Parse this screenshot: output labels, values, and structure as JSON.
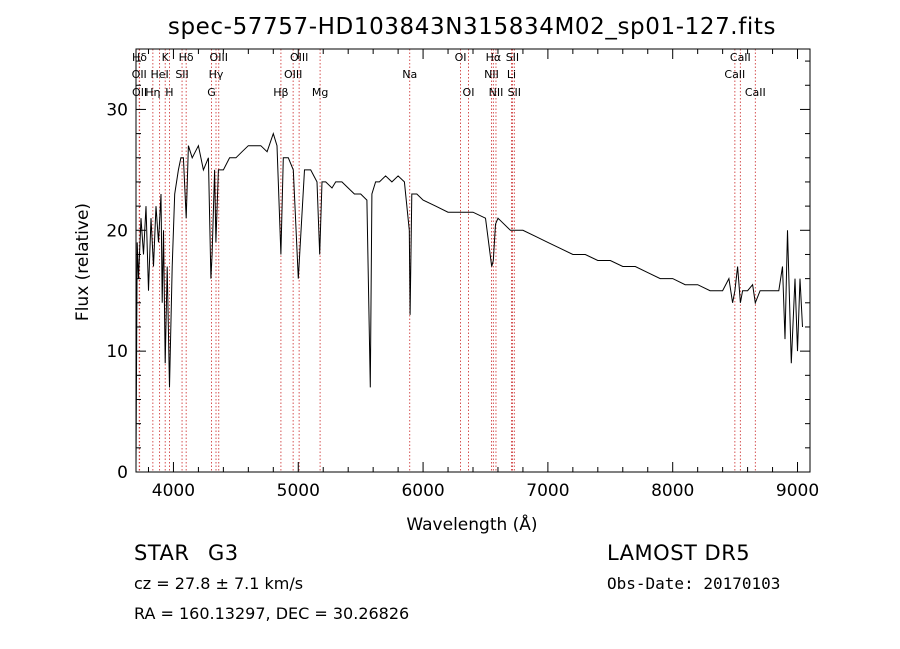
{
  "chart_data": {
    "type": "line",
    "title": "spec-57757-HD103843N315834M02_sp01-127.fits",
    "xlabel": "Wavelength (Å)",
    "ylabel": "Flux (relative)",
    "xlim": [
      3700,
      9100
    ],
    "ylim": [
      0,
      35
    ],
    "x_ticks": [
      4000,
      5000,
      6000,
      7000,
      8000,
      9000
    ],
    "y_ticks": [
      0,
      10,
      20,
      30
    ],
    "grid": false,
    "series": [
      {
        "x": [
          3700,
          3710,
          3720,
          3740,
          3760,
          3780,
          3800,
          3820,
          3840,
          3860,
          3880,
          3900,
          3910,
          3920,
          3934,
          3950,
          3968,
          3990,
          4010,
          4040,
          4060,
          4080,
          4102,
          4120,
          4150,
          4200,
          4240,
          4280,
          4300,
          4310,
          4330,
          4340,
          4360,
          4400,
          4450,
          4500,
          4550,
          4600,
          4650,
          4700,
          4750,
          4800,
          4830,
          4861,
          4880,
          4920,
          4960,
          5000,
          5050,
          5100,
          5150,
          5172,
          5190,
          5220,
          5270,
          5300,
          5350,
          5400,
          5450,
          5500,
          5550,
          5577,
          5590,
          5620,
          5650,
          5700,
          5750,
          5800,
          5850,
          5890,
          5896,
          5910,
          5950,
          6000,
          6100,
          6200,
          6300,
          6400,
          6500,
          6550,
          6563,
          6580,
          6600,
          6700,
          6800,
          6900,
          7000,
          7100,
          7200,
          7300,
          7400,
          7500,
          7600,
          7700,
          7800,
          7900,
          8000,
          8100,
          8200,
          8300,
          8400,
          8450,
          8480,
          8498,
          8520,
          8542,
          8560,
          8600,
          8640,
          8662,
          8700,
          8750,
          8800,
          8850,
          8880,
          8900,
          8920,
          8950,
          8980,
          9000,
          9020,
          9040
        ],
        "y": [
          0.5,
          19,
          16,
          21,
          18,
          22,
          15,
          21,
          17,
          22,
          19,
          23,
          14,
          20,
          9,
          17,
          7,
          17,
          23,
          25,
          26,
          26,
          21,
          27,
          26,
          27,
          25,
          26,
          16,
          18,
          25,
          19,
          25,
          25,
          26,
          26,
          26.5,
          27,
          27,
          27,
          26.5,
          28,
          27,
          18,
          26,
          26,
          25,
          16,
          25,
          25,
          24,
          18,
          24,
          24,
          23.5,
          24,
          24,
          23.5,
          23,
          23,
          22.5,
          7,
          23,
          24,
          24,
          24.5,
          24,
          24.5,
          24,
          20,
          13,
          23,
          23,
          22.5,
          22,
          21.5,
          21.5,
          21.5,
          21,
          17,
          17.5,
          20.5,
          21,
          20,
          20,
          19.5,
          19,
          18.5,
          18,
          18,
          17.5,
          17.5,
          17,
          17,
          16.5,
          16,
          16,
          15.5,
          15.5,
          15,
          15,
          16,
          14,
          15,
          17,
          14,
          15,
          15,
          15.5,
          14,
          15,
          15,
          15,
          15,
          17,
          11,
          20,
          9,
          16,
          10,
          16,
          12
        ]
      }
    ],
    "lines": [
      {
        "label": "Hδ",
        "x": 3728,
        "row": 1
      },
      {
        "label": "K",
        "x": 3934,
        "row": 1
      },
      {
        "label": "Hδ",
        "x": 4102,
        "row": 1
      },
      {
        "label": "OIII",
        "x": 4363,
        "row": 1
      },
      {
        "label": "OIII",
        "x": 5007,
        "row": 1
      },
      {
        "label": "OI",
        "x": 6300,
        "row": 1
      },
      {
        "label": "Hα",
        "x": 6563,
        "row": 1
      },
      {
        "label": "SII",
        "x": 6716,
        "row": 1
      },
      {
        "label": "CaII",
        "x": 8542,
        "row": 1
      },
      {
        "label": "OII",
        "x": 3726,
        "row": 2
      },
      {
        "label": "HeI",
        "x": 3889,
        "row": 2
      },
      {
        "label": "SII",
        "x": 4069,
        "row": 2
      },
      {
        "label": "Hγ",
        "x": 4341,
        "row": 2
      },
      {
        "label": "OIII",
        "x": 4959,
        "row": 2
      },
      {
        "label": "Na",
        "x": 5893,
        "row": 2
      },
      {
        "label": "NII",
        "x": 6548,
        "row": 2
      },
      {
        "label": "Li",
        "x": 6708,
        "row": 2
      },
      {
        "label": "CaII",
        "x": 8498,
        "row": 2
      },
      {
        "label": "OII",
        "x": 3729,
        "row": 3
      },
      {
        "label": "Hη",
        "x": 3835,
        "row": 3
      },
      {
        "label": "H",
        "x": 3968,
        "row": 3
      },
      {
        "label": "G",
        "x": 4305,
        "row": 3
      },
      {
        "label": "Hβ",
        "x": 4861,
        "row": 3
      },
      {
        "label": "Mg",
        "x": 5175,
        "row": 3
      },
      {
        "label": "OI",
        "x": 6364,
        "row": 3
      },
      {
        "label": "NII",
        "x": 6584,
        "row": 3
      },
      {
        "label": "SII",
        "x": 6731,
        "row": 3
      },
      {
        "label": "CaII",
        "x": 8662,
        "row": 3
      }
    ]
  },
  "info": {
    "class": "STAR",
    "subclass": "G3",
    "survey": "LAMOST  DR5",
    "cz": "cz = 27.8 ± 7.1 km/s",
    "obs_date": "Obs-Date: 20170103",
    "coords": "RA = 160.13297, DEC =  30.26826"
  },
  "colors": {
    "spectrum": "#000000",
    "line_markers": "#d04040",
    "axes": "#000000"
  }
}
